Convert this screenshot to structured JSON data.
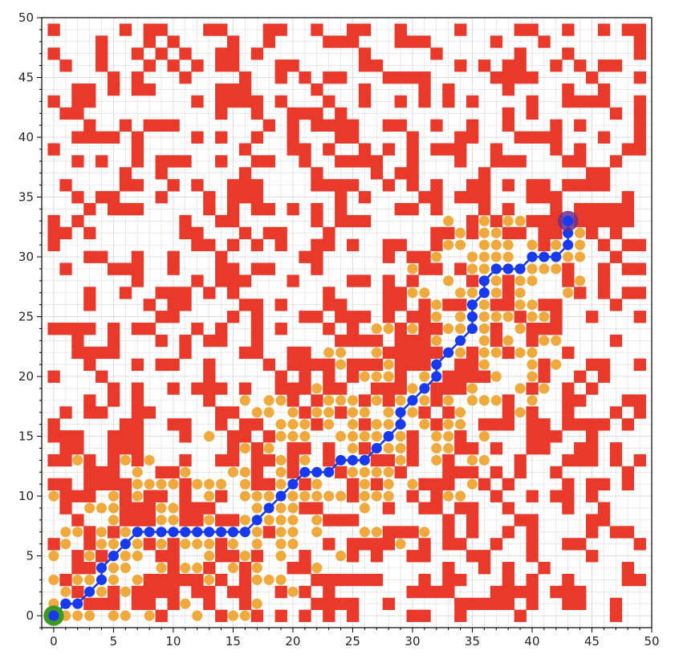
{
  "chart_data": {
    "type": "scatter",
    "xlim": [
      -1,
      50
    ],
    "ylim": [
      -1,
      50
    ],
    "major_ticks": [
      0,
      5,
      10,
      15,
      20,
      25,
      30,
      35,
      40,
      45,
      50
    ],
    "x_tick_labels": [
      "0",
      "5",
      "10",
      "15",
      "20",
      "25",
      "30",
      "35",
      "40",
      "45",
      "50"
    ],
    "y_tick_labels": [
      "0",
      "5",
      "10",
      "15",
      "20",
      "25",
      "30",
      "35",
      "40",
      "45",
      "50"
    ],
    "grid": true,
    "start": [
      0,
      0
    ],
    "goal": [
      43,
      33
    ],
    "colors": {
      "obstacle": "#e8392a",
      "explored": "#f0a93c",
      "path": "#1739f0",
      "start": "#3a9a21",
      "goal": "#6a2f8a",
      "grid": "#dcdcdc"
    },
    "path": [
      [
        0,
        0
      ],
      [
        1,
        1
      ],
      [
        2,
        1
      ],
      [
        3,
        2
      ],
      [
        4,
        3
      ],
      [
        4,
        4
      ],
      [
        5,
        5
      ],
      [
        6,
        6
      ],
      [
        7,
        7
      ],
      [
        8,
        7
      ],
      [
        9,
        7
      ],
      [
        10,
        7
      ],
      [
        11,
        7
      ],
      [
        12,
        7
      ],
      [
        13,
        7
      ],
      [
        14,
        7
      ],
      [
        15,
        7
      ],
      [
        16,
        7
      ],
      [
        17,
        8
      ],
      [
        18,
        9
      ],
      [
        19,
        10
      ],
      [
        20,
        11
      ],
      [
        21,
        12
      ],
      [
        22,
        12
      ],
      [
        23,
        12
      ],
      [
        24,
        13
      ],
      [
        25,
        13
      ],
      [
        26,
        13
      ],
      [
        27,
        14
      ],
      [
        28,
        15
      ],
      [
        29,
        16
      ],
      [
        29,
        17
      ],
      [
        30,
        18
      ],
      [
        31,
        19
      ],
      [
        32,
        20
      ],
      [
        32,
        21
      ],
      [
        33,
        22
      ],
      [
        34,
        23
      ],
      [
        35,
        24
      ],
      [
        35,
        25
      ],
      [
        35,
        26
      ],
      [
        36,
        27
      ],
      [
        36,
        28
      ],
      [
        37,
        29
      ],
      [
        38,
        29
      ],
      [
        39,
        29
      ],
      [
        40,
        30
      ],
      [
        41,
        30
      ],
      [
        42,
        30
      ],
      [
        43,
        31
      ],
      [
        43,
        32
      ],
      [
        43,
        33
      ]
    ],
    "explored_rect": [
      3,
      0,
      44,
      33
    ],
    "obstacle_rect": [
      0,
      0,
      49,
      49
    ],
    "obstacle_density": 0.36,
    "explored_density": 0.62
  }
}
